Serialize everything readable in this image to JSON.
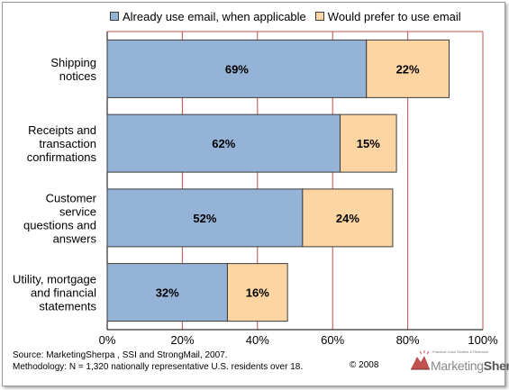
{
  "colors": {
    "series_a": "#95b3d7",
    "series_b": "#fcd5a2",
    "gridline": "#c0504d",
    "border": "#3c3c3c"
  },
  "chart_data": {
    "type": "bar",
    "orientation": "horizontal",
    "stacked": true,
    "categories": [
      [
        "Shipping",
        "notices"
      ],
      [
        "Receipts and",
        "transaction",
        "confirmations"
      ],
      [
        "Customer",
        "service",
        "questions and",
        "answers"
      ],
      [
        "Utility, mortgage",
        "and financial",
        "statements"
      ]
    ],
    "series": [
      {
        "name": "Already use email, when applicable",
        "values": [
          69,
          62,
          52,
          32
        ],
        "labels": [
          "69%",
          "62%",
          "52%",
          "32%"
        ]
      },
      {
        "name": "Would prefer to use email",
        "values": [
          22,
          15,
          24,
          16
        ],
        "labels": [
          "22%",
          "15%",
          "24%",
          "16%"
        ]
      }
    ],
    "xlim": [
      0,
      100
    ],
    "xticks": [
      "0%",
      "20%",
      "40%",
      "60%",
      "80%",
      "100%"
    ],
    "grid": "vertical",
    "legend_position": "top"
  },
  "footer": {
    "source": "Source: MarketingSherpa , SSI and StrongMail, 2007.",
    "methodology": "Methodology: N = 1,320 nationally representative U.S. residents over 18.",
    "copyright": "© 2008",
    "logo_tagline": "Practical Case Studies & Research",
    "logo_name_a": "Marketing",
    "logo_name_b": "Sherpa"
  }
}
